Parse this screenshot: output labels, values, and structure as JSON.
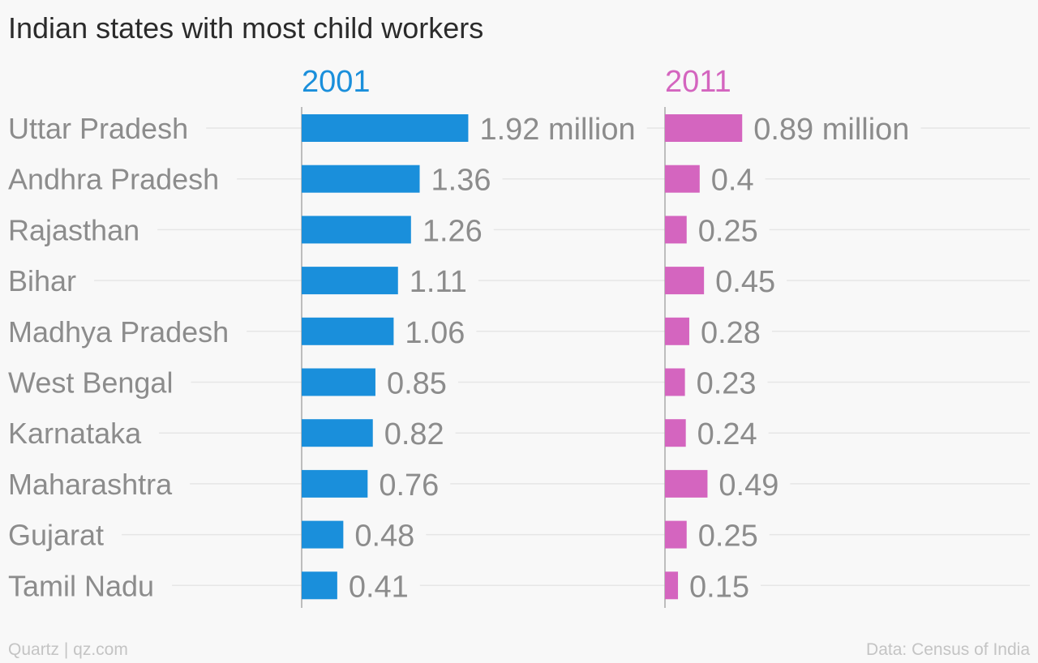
{
  "chart_data": {
    "type": "bar",
    "title": "Indian states with most child workers",
    "unit_label": "million",
    "categories": [
      "Uttar Pradesh",
      "Andhra Pradesh",
      "Rajasthan",
      "Bihar",
      "Madhya Pradesh",
      "West Bengal",
      "Karnataka",
      "Maharashtra",
      "Gujarat",
      "Tamil Nadu"
    ],
    "series": [
      {
        "name": "2001",
        "color": "#1a8fdb",
        "values": [
          1.92,
          1.36,
          1.26,
          1.11,
          1.06,
          0.85,
          0.82,
          0.76,
          0.48,
          0.41
        ]
      },
      {
        "name": "2011",
        "color": "#d465bf",
        "values": [
          0.89,
          0.4,
          0.25,
          0.45,
          0.28,
          0.23,
          0.24,
          0.49,
          0.25,
          0.15
        ]
      }
    ],
    "grid": true
  },
  "footer": {
    "source_left": "Quartz | qz.com",
    "source_right": "Data: Census of India"
  }
}
